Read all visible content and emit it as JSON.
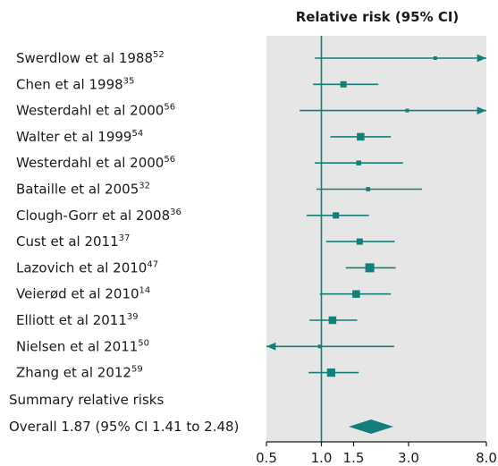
{
  "chart_data": {
    "type": "forest",
    "title": "Relative risk (95% CI)",
    "x_scale": "log",
    "xlim": [
      0.5,
      8.0
    ],
    "reference_line": 1.0,
    "xticks": [
      {
        "value": 0.5,
        "label": "0.5"
      },
      {
        "value": 1.0,
        "label": "1.0"
      },
      {
        "value": 1.5,
        "label": "1.5"
      },
      {
        "value": 3.0,
        "label": "3.0"
      },
      {
        "value": 8.0,
        "label": "8.0"
      }
    ],
    "studies": [
      {
        "name": "Swerdlow et al 1988",
        "ref": "52",
        "rr": 4.2,
        "lower": 0.92,
        "upper": 8.0,
        "upper_arrow": true,
        "lower_arrow": false,
        "weight": 1
      },
      {
        "name": "Chen et al 1998",
        "ref": "35",
        "rr": 1.32,
        "lower": 0.9,
        "upper": 2.05,
        "upper_arrow": false,
        "lower_arrow": false,
        "weight": 3
      },
      {
        "name": "Westerdahl et al 2000",
        "ref": "56",
        "rr": 2.95,
        "lower": 0.76,
        "upper": 8.0,
        "upper_arrow": true,
        "lower_arrow": false,
        "weight": 1
      },
      {
        "name": "Walter et al 1999",
        "ref": "54",
        "rr": 1.64,
        "lower": 1.12,
        "upper": 2.4,
        "upper_arrow": false,
        "lower_arrow": false,
        "weight": 4
      },
      {
        "name": "Westerdahl et al 2000",
        "ref": "56",
        "rr": 1.6,
        "lower": 0.92,
        "upper": 2.8,
        "upper_arrow": false,
        "lower_arrow": false,
        "weight": 2
      },
      {
        "name": "Bataille et al 2005",
        "ref": "32",
        "rr": 1.8,
        "lower": 0.94,
        "upper": 3.55,
        "upper_arrow": false,
        "lower_arrow": false,
        "weight": 1.5
      },
      {
        "name": "Clough-Gorr et al 2008",
        "ref": "36",
        "rr": 1.2,
        "lower": 0.83,
        "upper": 1.82,
        "upper_arrow": false,
        "lower_arrow": false,
        "weight": 3
      },
      {
        "name": "Cust et al 2011",
        "ref": "37",
        "rr": 1.62,
        "lower": 1.06,
        "upper": 2.52,
        "upper_arrow": false,
        "lower_arrow": false,
        "weight": 3
      },
      {
        "name": "Lazovich et al 2010",
        "ref": "47",
        "rr": 1.84,
        "lower": 1.36,
        "upper": 2.55,
        "upper_arrow": false,
        "lower_arrow": false,
        "weight": 5
      },
      {
        "name": "Veierød et al 2010",
        "ref": "14",
        "rr": 1.55,
        "lower": 0.98,
        "upper": 2.4,
        "upper_arrow": false,
        "lower_arrow": false,
        "weight": 4
      },
      {
        "name": "Elliott et al 2011",
        "ref": "39",
        "rr": 1.15,
        "lower": 0.86,
        "upper": 1.57,
        "upper_arrow": false,
        "lower_arrow": false,
        "weight": 4
      },
      {
        "name": "Nielsen et al 2011",
        "ref": "50",
        "rr": 0.98,
        "lower": 0.5,
        "upper": 2.5,
        "upper_arrow": false,
        "lower_arrow": true,
        "weight": 1
      },
      {
        "name": "Zhang et al 2012",
        "ref": "59",
        "rr": 1.13,
        "lower": 0.85,
        "upper": 1.6,
        "upper_arrow": false,
        "lower_arrow": false,
        "weight": 4.5
      }
    ],
    "summary_heading": "Summary relative risks",
    "overall": {
      "label": "Overall 1.87 (95% CI 1.41 to 2.48)",
      "rr": 1.87,
      "lower": 1.41,
      "upper": 2.48
    },
    "colors": {
      "marker": "#127f7a",
      "panel": "#e6e6e6",
      "reference": "#127f7a",
      "axis": "#1a1a1a",
      "text": "#1a1a1a"
    }
  }
}
